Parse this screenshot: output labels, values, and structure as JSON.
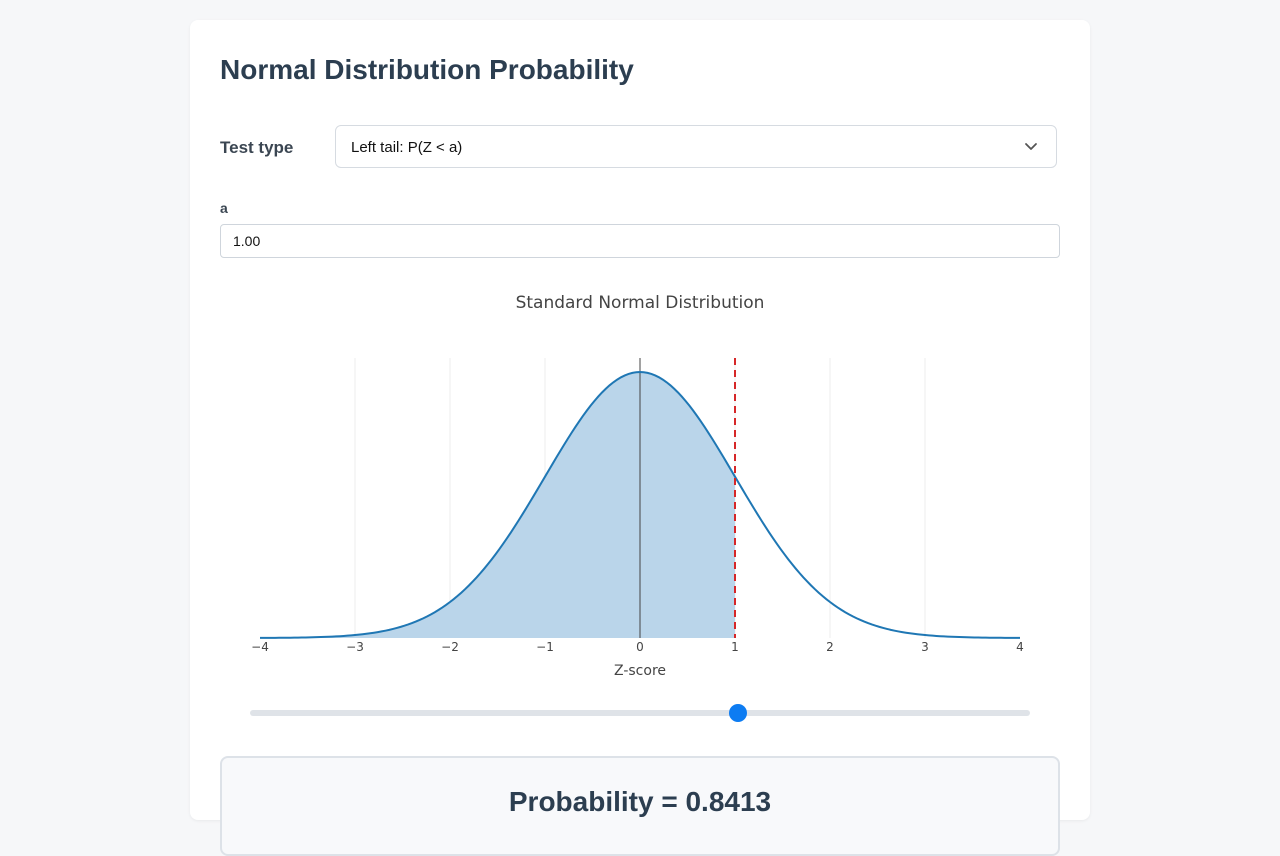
{
  "title": "Normal Distribution Probability",
  "form": {
    "test_type_label": "Test type",
    "test_type_selected": "Left tail: P(Z < a)",
    "a_label": "a",
    "a_value": "1.00"
  },
  "slider": {
    "min": -4,
    "max": 4,
    "value": 1.0
  },
  "result": {
    "text": "Probability = 0.8413"
  },
  "colors": {
    "curve": "#1f77b4",
    "fill": "#bad5ea",
    "marker_line": "#d62728",
    "slider_thumb": "#0d7cf2"
  },
  "chart_data": {
    "type": "area",
    "title": "Standard Normal Distribution",
    "xlabel": "Z-score",
    "ylabel": "",
    "xlim": [
      -4,
      4
    ],
    "ylim": [
      0,
      0.42
    ],
    "x_ticks": [
      "−4",
      "−3",
      "−2",
      "−1",
      "0",
      "1",
      "2",
      "3",
      "4"
    ],
    "x_tick_values": [
      -4,
      -3,
      -2,
      -1,
      0,
      1,
      2,
      3,
      4
    ],
    "grid": true,
    "shaded_region": [
      -4,
      1.0
    ],
    "marker_x": 1.0,
    "x": [
      -4,
      -3.5,
      -3,
      -2.5,
      -2,
      -1.5,
      -1,
      -0.5,
      0,
      0.5,
      1,
      1.5,
      2,
      2.5,
      3,
      3.5,
      4
    ],
    "y": [
      0.0001,
      0.0009,
      0.0044,
      0.0175,
      0.054,
      0.1295,
      0.242,
      0.3521,
      0.3989,
      0.3521,
      0.242,
      0.1295,
      0.054,
      0.0175,
      0.0044,
      0.0009,
      0.0001
    ]
  }
}
